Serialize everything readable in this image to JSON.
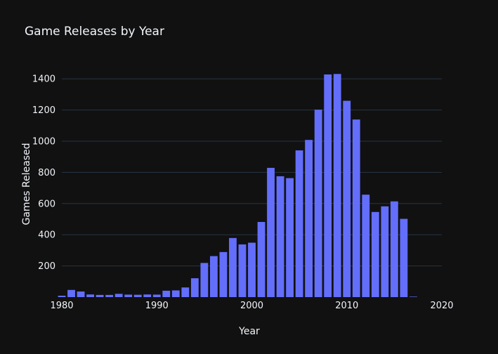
{
  "chart_data": {
    "type": "bar",
    "title": "Game Releases by Year",
    "xlabel": "Year",
    "ylabel": "Games Released",
    "xlim": [
      1980,
      2020
    ],
    "ylim": [
      0,
      1500
    ],
    "x_ticks": [
      1980,
      1990,
      2000,
      2010,
      2020
    ],
    "y_ticks": [
      200,
      400,
      600,
      800,
      1000,
      1200,
      1400
    ],
    "grid": true,
    "colors": {
      "bar": "#636efa",
      "background": "#111111",
      "grid": "#283442",
      "text": "#f2f5fa"
    },
    "x": [
      1980,
      1981,
      1982,
      1983,
      1984,
      1985,
      1986,
      1987,
      1988,
      1989,
      1990,
      1991,
      1992,
      1993,
      1994,
      1995,
      1996,
      1997,
      1998,
      1999,
      2000,
      2001,
      2002,
      2003,
      2004,
      2005,
      2006,
      2007,
      2008,
      2009,
      2010,
      2011,
      2012,
      2013,
      2014,
      2015,
      2016,
      2017
    ],
    "values": [
      9,
      46,
      36,
      17,
      14,
      14,
      21,
      16,
      15,
      17,
      16,
      41,
      43,
      62,
      121,
      219,
      263,
      289,
      379,
      338,
      349,
      482,
      829,
      775,
      763,
      941,
      1008,
      1202,
      1428,
      1431,
      1259,
      1139,
      657,
      546,
      582,
      614,
      502,
      3
    ]
  }
}
